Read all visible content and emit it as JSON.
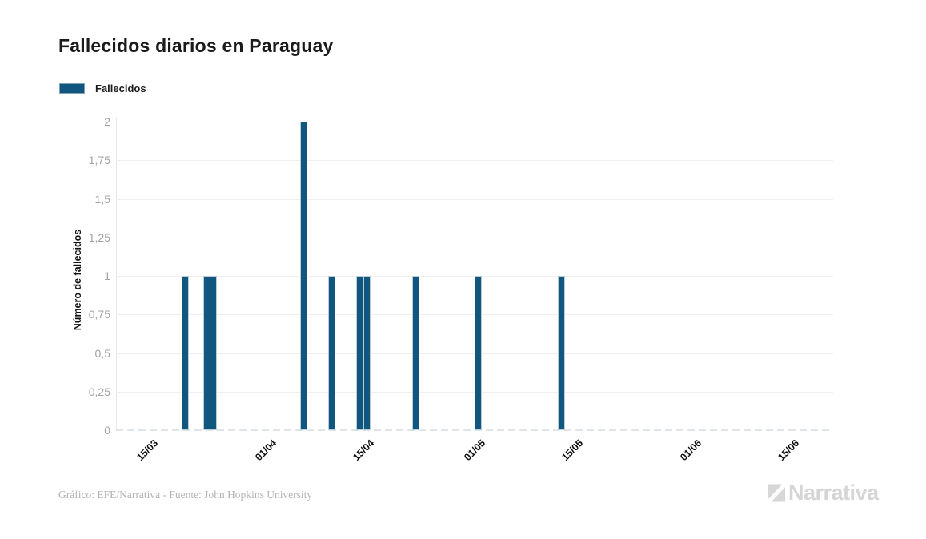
{
  "page": {
    "title": "Fallecidos diarios en Paraguay"
  },
  "legend": {
    "items": [
      {
        "label": "Fallecidos",
        "color": "#10567e"
      }
    ]
  },
  "footer": {
    "credit": "Gráfico: EFE/Narrativa - Fuente: John Hopkins University"
  },
  "brand": {
    "name": "Narrativa"
  },
  "chart_data": {
    "type": "bar",
    "title": "Fallecidos diarios en Paraguay",
    "xlabel": "",
    "ylabel": "Número de fallecidos",
    "ylim": [
      0,
      2
    ],
    "grid": true,
    "legend_position": "top-left",
    "bar_color": "#10567e",
    "yticks": [
      {
        "value": 0,
        "label": "0"
      },
      {
        "value": 0.25,
        "label": "0,25"
      },
      {
        "value": 0.5,
        "label": "0,5"
      },
      {
        "value": 0.75,
        "label": "0,75"
      },
      {
        "value": 1,
        "label": "1"
      },
      {
        "value": 1.25,
        "label": "1,25"
      },
      {
        "value": 1.5,
        "label": "1,5"
      },
      {
        "value": 1.75,
        "label": "1,75"
      },
      {
        "value": 2,
        "label": "2"
      }
    ],
    "xticks": [
      "15/03",
      "01/04",
      "15/04",
      "01/05",
      "15/05",
      "01/06",
      "15/06"
    ],
    "x_range": [
      "10/03",
      "21/06"
    ],
    "series": [
      {
        "name": "Fallecidos",
        "points": [
          {
            "date": "20/03",
            "value": 1
          },
          {
            "date": "23/03",
            "value": 1
          },
          {
            "date": "24/03",
            "value": 1
          },
          {
            "date": "06/04",
            "value": 2
          },
          {
            "date": "10/04",
            "value": 1
          },
          {
            "date": "14/04",
            "value": 1
          },
          {
            "date": "15/04",
            "value": 1
          },
          {
            "date": "22/04",
            "value": 1
          },
          {
            "date": "01/05",
            "value": 1
          },
          {
            "date": "13/05",
            "value": 1
          }
        ]
      }
    ]
  }
}
